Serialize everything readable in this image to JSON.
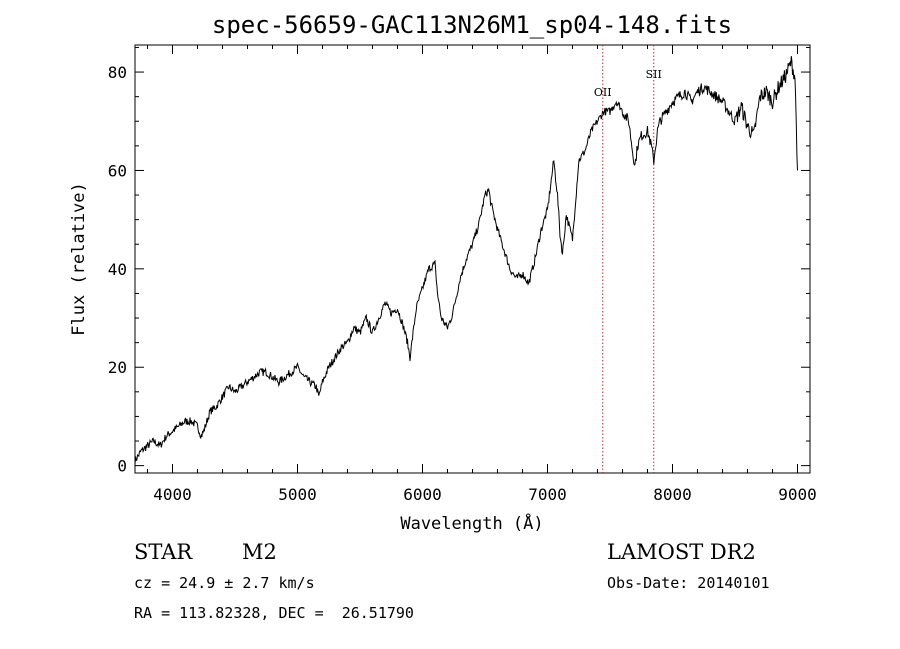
{
  "chart_data": {
    "type": "line",
    "title": "spec-56659-GAC113N26M1_sp04-148.fits",
    "xlabel": "Wavelength (Å)",
    "ylabel": "Flux (relative)",
    "xlim": [
      3700,
      9100
    ],
    "ylim": [
      -1.5,
      85.5
    ],
    "xticks": [
      4000,
      5000,
      6000,
      7000,
      8000,
      9000
    ],
    "yticks": [
      0,
      20,
      40,
      60,
      80
    ],
    "grid": false,
    "series": [
      {
        "x": [
          3700,
          3750,
          3800,
          3850,
          3900,
          3950,
          4000,
          4050,
          4100,
          4150,
          4200,
          4230,
          4250,
          4300,
          4350,
          4400,
          4450,
          4500,
          4550,
          4600,
          4650,
          4700,
          4750,
          4800,
          4850,
          4900,
          4950,
          5000,
          5050,
          5100,
          5150,
          5170,
          5200,
          5250,
          5300,
          5350,
          5400,
          5450,
          5500,
          5550,
          5600,
          5650,
          5700,
          5750,
          5800,
          5850,
          5880,
          5900,
          5950,
          6000,
          6050,
          6100,
          6120,
          6150,
          6200,
          6230,
          6250,
          6300,
          6350,
          6400,
          6450,
          6500,
          6530,
          6550,
          6600,
          6650,
          6700,
          6750,
          6800,
          6850,
          6900,
          6950,
          7000,
          7020,
          7050,
          7080,
          7100,
          7120,
          7150,
          7200,
          7250,
          7300,
          7350,
          7400,
          7450,
          7500,
          7550,
          7580,
          7600,
          7650,
          7680,
          7700,
          7720,
          7750,
          7800,
          7830,
          7850,
          7880,
          7900,
          7950,
          8000,
          8050,
          8100,
          8150,
          8200,
          8250,
          8300,
          8350,
          8400,
          8450,
          8500,
          8550,
          8600,
          8650,
          8700,
          8750,
          8800,
          8850,
          8900,
          8950,
          8980,
          9000
        ],
        "y": [
          1,
          3,
          4,
          5,
          4,
          6,
          7,
          8,
          9,
          9,
          8,
          6,
          7,
          11,
          12,
          14,
          16,
          15,
          16,
          17,
          18,
          19,
          19,
          18,
          17,
          18,
          19,
          20,
          18,
          17,
          16,
          14,
          17,
          20,
          22,
          24,
          25,
          28,
          27,
          30,
          27,
          30,
          33,
          31,
          32,
          28,
          25,
          22,
          32,
          36,
          40,
          41,
          35,
          30,
          28,
          30,
          32,
          38,
          42,
          45,
          49,
          55,
          56,
          53,
          48,
          44,
          40,
          38,
          39,
          37,
          42,
          48,
          52,
          56,
          62,
          55,
          47,
          43,
          51,
          46,
          62,
          64,
          68,
          70,
          72,
          72,
          74,
          73,
          72,
          70,
          64,
          61,
          65,
          67,
          68,
          65,
          62,
          68,
          70,
          72,
          74,
          75,
          76,
          74,
          76,
          77,
          76,
          75,
          74,
          72,
          70,
          73,
          69,
          67,
          75,
          76,
          74,
          77,
          79,
          82,
          79,
          60
        ]
      }
    ],
    "markers": [
      {
        "label": "OII",
        "x": 7442,
        "color": "#b03030"
      },
      {
        "label": "SII",
        "x": 7850,
        "color": "#b03030"
      }
    ],
    "line_color": "#000000"
  },
  "info": {
    "object_type": "STAR",
    "subclass": "M2",
    "survey": "LAMOST DR2",
    "cz": "cz = 24.9 ± 2.7 km/s",
    "obs_date": "Obs-Date: 20140101",
    "coords": "RA = 113.82328, DEC =  26.51790"
  }
}
